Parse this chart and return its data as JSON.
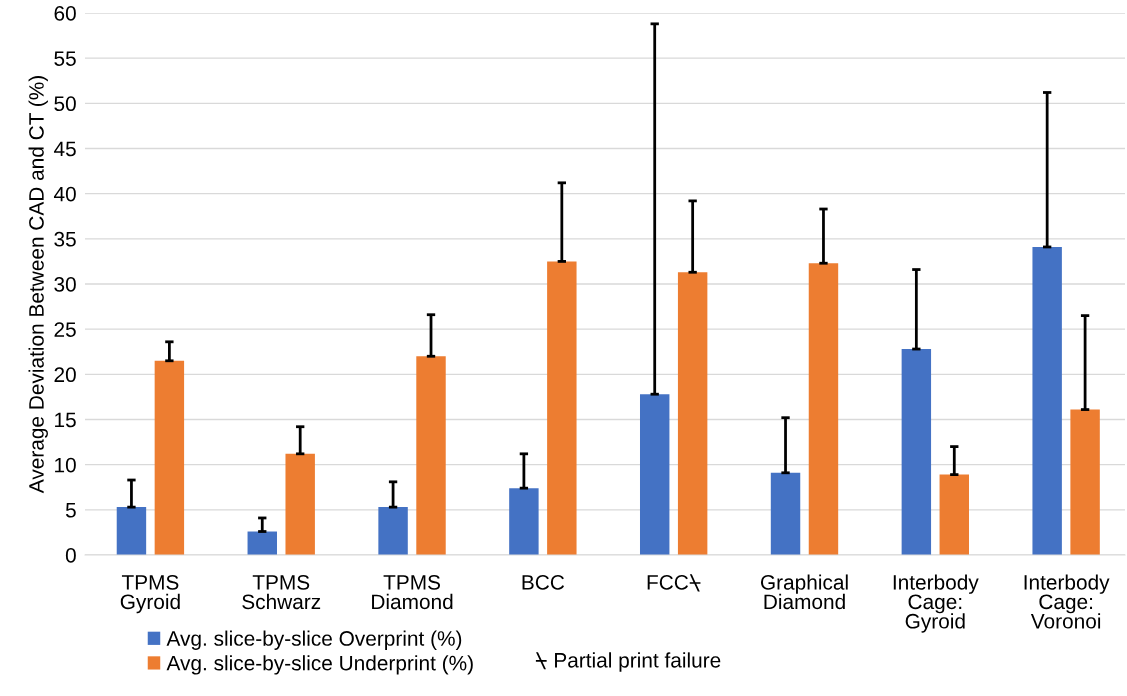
{
  "chart_data": {
    "type": "bar",
    "ylabel": "Average Deviation Between CAD and CT (%)",
    "categories": [
      "TPMS\nGyroid",
      "TPMS\nSchwarz",
      "TPMS\nDiamond",
      "BCC",
      "FCC⍀",
      "Graphical\nDiamond",
      "Interbody\nCage:\nGyroid",
      "Interbody\nCage:\nVoronoi"
    ],
    "series": [
      {
        "name": "Avg. slice-by-slice Overprint (%)",
        "color": "#4472c4",
        "values": [
          5.3,
          2.6,
          5.3,
          7.4,
          17.8,
          9.1,
          22.8,
          34.1
        ],
        "errors": [
          [
            5.3,
            8.3
          ],
          [
            2.6,
            4.1
          ],
          [
            5.3,
            8.1
          ],
          [
            7.4,
            11.2
          ],
          [
            17.8,
            58.8
          ],
          [
            9.1,
            15.2
          ],
          [
            22.8,
            31.6
          ],
          [
            34.1,
            51.2
          ]
        ]
      },
      {
        "name": "Avg. slice-by-slice Underprint (%)",
        "color": "#ed7d31",
        "values": [
          21.5,
          11.2,
          22.0,
          32.5,
          31.3,
          32.3,
          8.9,
          16.1
        ],
        "errors": [
          [
            21.5,
            23.6
          ],
          [
            11.2,
            14.2
          ],
          [
            22.0,
            26.6
          ],
          [
            32.5,
            41.2
          ],
          [
            31.3,
            39.2
          ],
          [
            32.3,
            38.3
          ],
          [
            8.9,
            12.0
          ],
          [
            16.1,
            26.5
          ]
        ]
      }
    ],
    "ylim": [
      0,
      60
    ],
    "yticks": [
      0,
      5,
      10,
      15,
      20,
      25,
      30,
      35,
      40,
      45,
      50,
      55,
      60
    ],
    "grid": "y",
    "legend": "bottom left",
    "annotations": [
      "⍀ Partial print failure"
    ]
  }
}
